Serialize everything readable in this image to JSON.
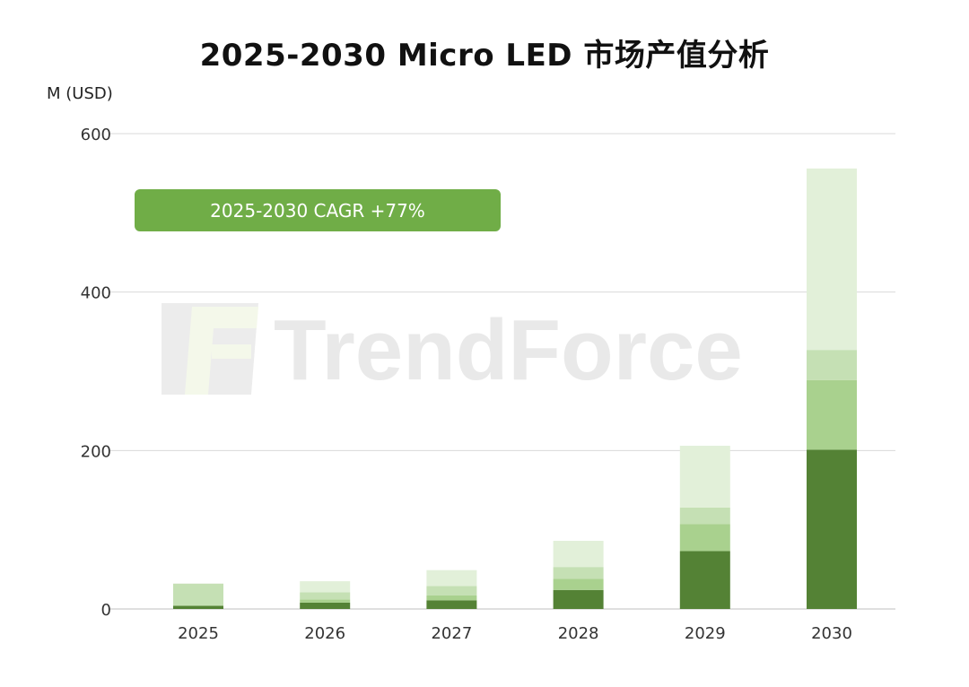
{
  "title": "2025-2030 Micro LED 市场产值分析",
  "watermark": "TrendForce",
  "chart_data": {
    "type": "bar",
    "stacked": true,
    "title": "2025-2030 Micro LED 市场产值分析",
    "ylabel": "M (USD)",
    "xlabel": "",
    "categories": [
      "2025",
      "2026",
      "2027",
      "2028",
      "2029",
      "2030"
    ],
    "ylim": [
      0,
      600
    ],
    "yticks": [
      0,
      200,
      400,
      600
    ],
    "grid": true,
    "annotation": "2025-2030 CAGR +77%",
    "series": [
      {
        "color": "#548235",
        "values": [
          4,
          8,
          11,
          24,
          73,
          201
        ]
      },
      {
        "color": "#a9d18e",
        "values": [
          0,
          4,
          6,
          14,
          34,
          88
        ]
      },
      {
        "color": "#c5e0b4",
        "values": [
          28,
          9,
          12,
          15,
          21,
          38
        ]
      },
      {
        "color": "#e2f0d9",
        "values": [
          0,
          14,
          20,
          33,
          78,
          229
        ]
      }
    ],
    "totals": [
      32,
      35,
      49,
      86,
      206,
      556
    ]
  }
}
